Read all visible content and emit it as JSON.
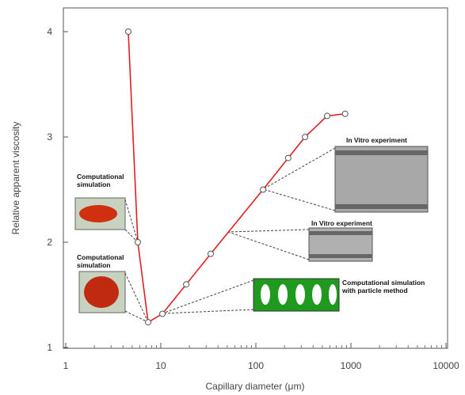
{
  "chart_data": {
    "type": "line",
    "x_label": "Capillary diameter (μm)",
    "y_label": "Relative apparent viscosity",
    "x_scale": "log",
    "x": [
      4.55,
      5.73,
      7.36,
      10.4,
      18.5,
      33.5,
      119,
      219,
      329,
      562,
      870
    ],
    "series": [
      {
        "color": "#e02020",
        "values": [
          4.0,
          2.0,
          1.24,
          1.32,
          1.6,
          1.89,
          2.5,
          2.8,
          3.0,
          3.2,
          3.22
        ]
      }
    ],
    "xlim": [
      1,
      10000
    ],
    "xticks": [
      1,
      10,
      100,
      1000,
      10000
    ],
    "ylim": [
      1,
      4.2
    ],
    "yticks": [
      1,
      2,
      3,
      4
    ],
    "annotations": [
      {
        "text": "Computational simulation"
      },
      {
        "text": "Computational simulation"
      },
      {
        "text": "In Vitro experiment"
      },
      {
        "text": "In Vitro experiment"
      },
      {
        "text": "Computational simulation with particle method"
      }
    ]
  }
}
